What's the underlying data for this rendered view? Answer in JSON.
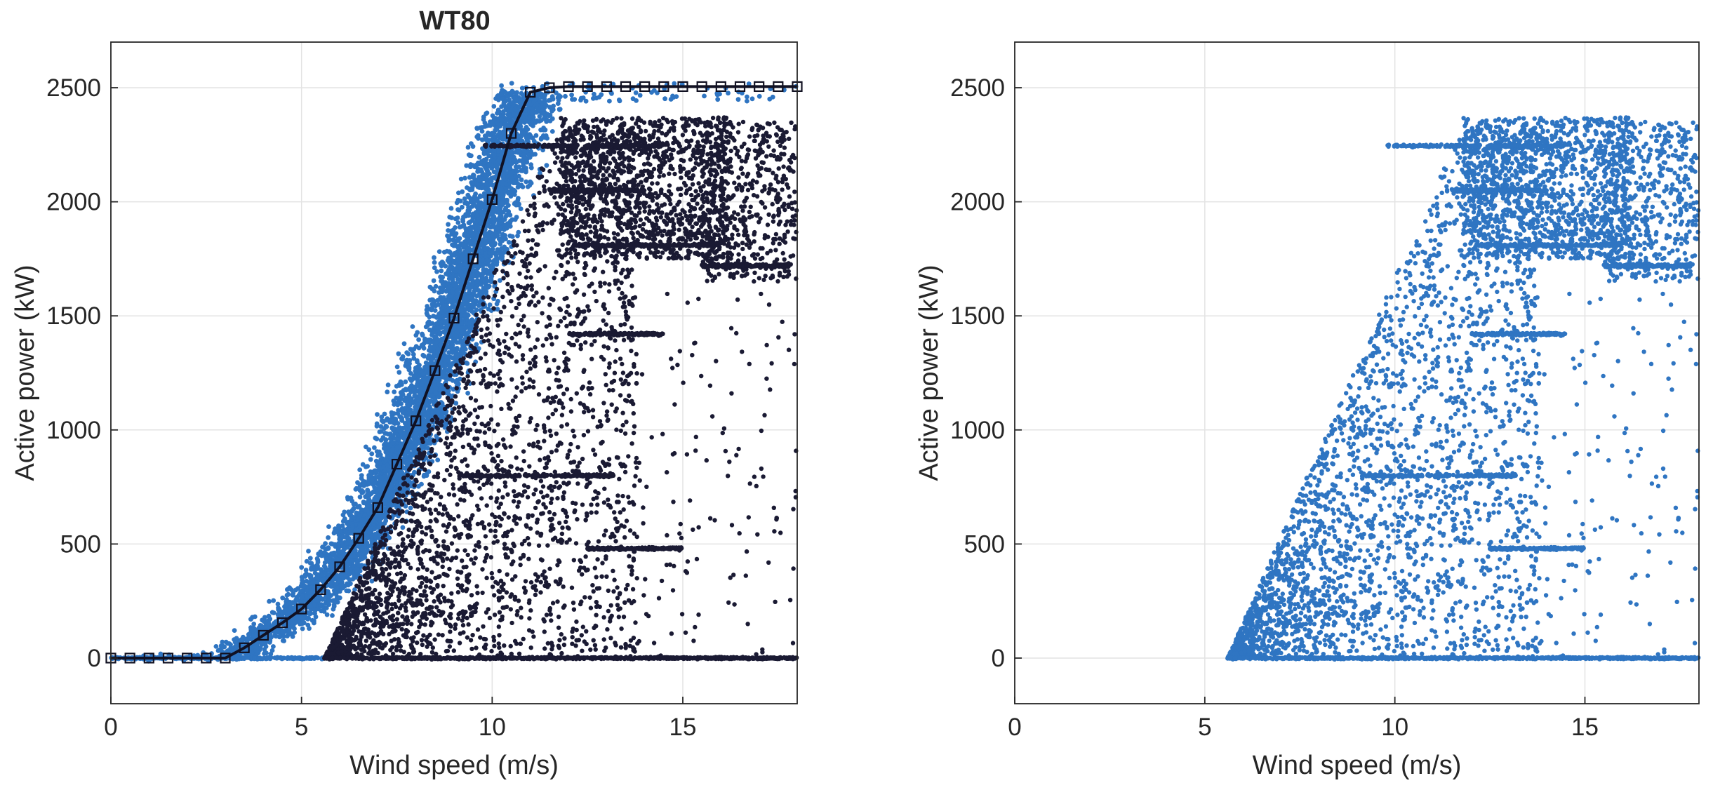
{
  "colors": {
    "scatter_blue": "#2f75c2",
    "outlier_dark": "#1a1a33",
    "curve": "#111122",
    "grid": "#e3e3e3",
    "axis": "#262626"
  },
  "chart_data": [
    {
      "type": "scatter",
      "title": "WT80",
      "xlabel": "Wind speed (m/s)",
      "ylabel": "Active power (kW)",
      "xlim": [
        0,
        18
      ],
      "ylim": [
        -200,
        2700
      ],
      "xticks": [
        0,
        5,
        10,
        15
      ],
      "yticks": [
        0,
        500,
        1000,
        1500,
        2000,
        2500
      ],
      "grid": true,
      "series": [
        {
          "kind": "normal-band",
          "color": "#2f75c2",
          "band_center": "power_curve",
          "band_halfwidth_ms": 1.2,
          "x_range": [
            0,
            18
          ]
        },
        {
          "kind": "anomalies",
          "color": "#1a1a33",
          "x_range": [
            5.5,
            18
          ],
          "y_range": [
            -10,
            2380
          ]
        },
        {
          "kind": "power-curve",
          "color": "#111122",
          "marker": "square",
          "x": [
            0,
            0.5,
            1,
            1.5,
            2,
            2.5,
            3,
            3.5,
            4,
            4.5,
            5,
            5.5,
            6,
            6.5,
            7,
            7.5,
            8,
            8.5,
            9,
            9.5,
            10,
            10.5,
            11,
            11.5,
            12,
            12.5,
            13,
            13.5,
            14,
            14.5,
            15,
            15.5,
            16,
            16.5,
            17,
            17.5,
            18
          ],
          "y": [
            0,
            0,
            0,
            0,
            0,
            0,
            0,
            45,
            100,
            155,
            215,
            300,
            400,
            525,
            660,
            850,
            1040,
            1260,
            1490,
            1750,
            2010,
            2300,
            2480,
            2500,
            2505,
            2505,
            2505,
            2505,
            2505,
            2505,
            2505,
            2505,
            2505,
            2505,
            2505,
            2505,
            2505
          ]
        }
      ]
    },
    {
      "type": "scatter",
      "title": "",
      "xlabel": "Wind speed (m/s)",
      "ylabel": "Active power (kW)",
      "xlim": [
        0,
        18
      ],
      "ylim": [
        -200,
        2700
      ],
      "xticks": [
        0,
        5,
        10,
        15
      ],
      "yticks": [
        0,
        500,
        1000,
        1500,
        2000,
        2500
      ],
      "grid": true,
      "series": [
        {
          "kind": "anomalies",
          "color": "#2f75c2",
          "x_range": [
            5.5,
            18
          ],
          "y_range": [
            -10,
            2380
          ]
        }
      ]
    }
  ]
}
